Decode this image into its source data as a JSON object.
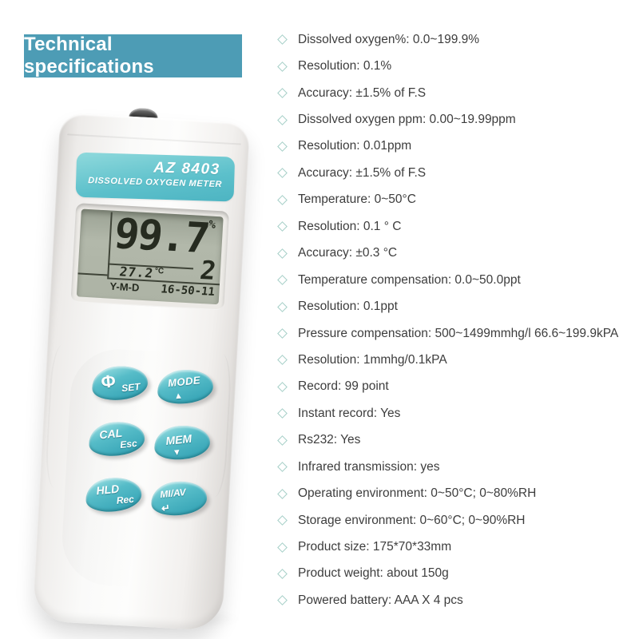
{
  "title": "Technical specifications",
  "specs": {
    "bullet_icon": "diamond-outline",
    "items": [
      "Dissolved oxygen%: 0.0~199.9%",
      "Resolution: 0.1%",
      "Accuracy: ±1.5% of F.S",
      "Dissolved oxygen ppm: 0.00~19.99ppm",
      "Resolution: 0.01ppm",
      "Accuracy: ±1.5% of F.S",
      "Temperature: 0~50°C",
      "Resolution: 0.1 ° C",
      "Accuracy: ±0.3 °C",
      "Temperature compensation: 0.0~50.0ppt",
      "Resolution: 0.1ppt",
      "Pressure compensation: 500~1499mmhg/l 66.6~199.9kPA",
      "Resolution: 1mmhg/0.1kPA",
      "Record: 99 point",
      "Instant record: Yes",
      "Rs232: Yes",
      "Infrared transmission: yes",
      "Operating environment: 0~50°C; 0~80%RH",
      "Storage environment: 0~60°C; 0~90%RH",
      "Product size: 175*70*33mm",
      "Product weight: about 150g",
      "Powered battery: AAA X 4 pcs"
    ]
  },
  "device": {
    "brand_label": {
      "model": "AZ 8403",
      "name": "DISSOLVED OXYGEN METER"
    },
    "lcd": {
      "main_value": "99.7",
      "main_unit": "%",
      "secondary_value": "2",
      "temperature_value": "27.2",
      "temperature_unit": "°C",
      "date_format": "Y-M-D",
      "time": "16-50-11"
    },
    "buttons": {
      "set": {
        "icon": "Φ",
        "label": "SET"
      },
      "mode": {
        "label": "MODE",
        "icon": "▲"
      },
      "cal": {
        "label": "CAL",
        "sub": "Esc"
      },
      "mem": {
        "label": "MEM",
        "icon": "▼"
      },
      "hld": {
        "label": "HLD",
        "sub": "Rec"
      },
      "mi_av": {
        "label": "MI/AV",
        "icon": "↵"
      }
    }
  },
  "colors": {
    "title_background": "#4d9cb5",
    "label_teal": "#5cc0cb",
    "button_teal": "#3fa9ba",
    "lcd_background": "#aeb4a6",
    "bullet_outline": "#a5cfc7",
    "text": "#3d3d3d"
  }
}
